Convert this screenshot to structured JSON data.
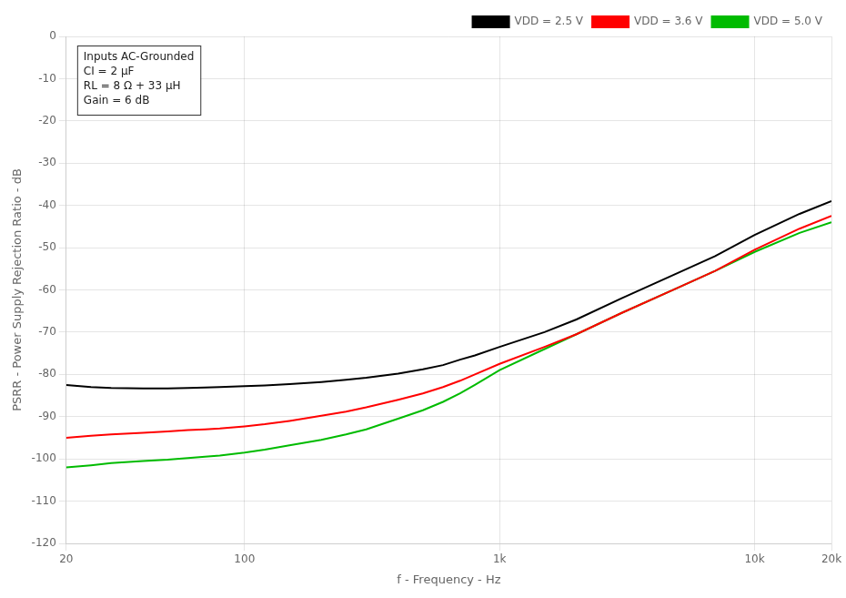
{
  "chart_data": {
    "type": "line",
    "title": "",
    "x_label": "f - Frequency - Hz",
    "y_label": "PSRR - Power Supply Rejection Ratio - dB",
    "log": "x",
    "x": [
      20,
      25,
      30,
      40,
      50,
      60,
      70,
      80,
      100,
      120,
      150,
      200,
      250,
      300,
      400,
      500,
      600,
      700,
      800,
      1000,
      1500,
      2000,
      3000,
      5000,
      7000,
      10000,
      15000,
      20000
    ],
    "series": [
      {
        "name": "VDD = 2.5 V",
        "color": "#000000",
        "values": [
          -82.5,
          -83,
          -83.2,
          -83.3,
          -83.3,
          -83.2,
          -83.1,
          -83.0,
          -82.8,
          -82.6,
          -82.3,
          -81.8,
          -81.3,
          -80.8,
          -79.8,
          -78.8,
          -77.8,
          -76.5,
          -75.5,
          -73.5,
          -70,
          -67,
          -62,
          -56,
          -52,
          -47,
          -42,
          -39
        ]
      },
      {
        "name": "VDD = 3.6 V",
        "color": "#ff0000",
        "values": [
          -95,
          -94.5,
          -94.2,
          -93.8,
          -93.5,
          -93.2,
          -93.0,
          -92.8,
          -92.3,
          -91.8,
          -91.0,
          -89.8,
          -88.8,
          -87.8,
          -86.0,
          -84.5,
          -83.0,
          -81.5,
          -80.0,
          -77.5,
          -73.5,
          -70.5,
          -65.5,
          -59.5,
          -55.5,
          -50.5,
          -45.5,
          -42.5
        ]
      },
      {
        "name": "VDD = 5.0 V",
        "color": "#00bb00",
        "values": [
          -102,
          -101.5,
          -101.0,
          -100.5,
          -100.2,
          -99.8,
          -99.5,
          -99.2,
          -98.5,
          -97.8,
          -96.8,
          -95.5,
          -94.2,
          -93.0,
          -90.5,
          -88.5,
          -86.5,
          -84.5,
          -82.5,
          -79.0,
          -74.0,
          -70.5,
          -65.5,
          -59.5,
          -55.5,
          -51.0,
          -46.5,
          -44.0
        ]
      }
    ],
    "xlim": [
      20,
      20000
    ],
    "xticks": [
      20,
      100,
      {
        "value": 1000,
        "label": "1k"
      },
      {
        "value": 10000,
        "label": "10k"
      },
      {
        "value": 20000,
        "label": "20k"
      }
    ],
    "ylim": [
      -120,
      0
    ],
    "yticks": [
      0,
      -10,
      -20,
      -30,
      -40,
      -50,
      -60,
      -70,
      -80,
      -90,
      -100,
      -110,
      -120
    ],
    "grid": true,
    "legend": "upper right",
    "annotations": [
      "Inputs AC-Grounded\nCI = 2 μF\nRL = 8 Ω + 33 μH\nGain = 6 dB"
    ]
  }
}
